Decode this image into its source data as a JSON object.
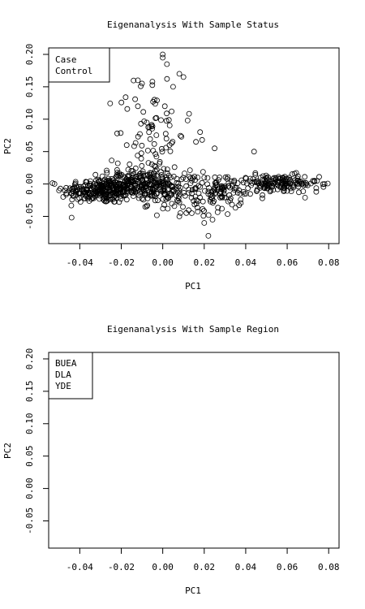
{
  "chart_data": [
    {
      "type": "scatter",
      "title": "Eigenanalysis With Sample Status",
      "xlabel": "PC1",
      "ylabel": "PC2",
      "xlim": [
        -0.055,
        0.085
      ],
      "ylim": [
        -0.092,
        0.21
      ],
      "xticks": [
        "-0.04",
        "-0.02",
        "0.00",
        "0.02",
        "0.04",
        "0.06",
        "0.08"
      ],
      "xtick_values": [
        -0.04,
        -0.02,
        0.0,
        0.02,
        0.04,
        0.06,
        0.08
      ],
      "yticks": [
        "-0.05",
        "0.00",
        "0.05",
        "0.10",
        "0.15",
        "0.20"
      ],
      "ytick_values": [
        -0.05,
        0.0,
        0.05,
        0.1,
        0.15,
        0.2
      ],
      "legend": [
        "Case",
        "Control"
      ],
      "legend_position": "top-left",
      "marker": "open-circle",
      "series": [
        {
          "clusters": [
            {
              "cx": -0.03,
              "cy": -0.01,
              "sx": 0.009,
              "sy": 0.01,
              "n": 230
            },
            {
              "cx": -0.015,
              "cy": 0.0,
              "sx": 0.008,
              "sy": 0.012,
              "n": 180
            },
            {
              "cx": 0.0,
              "cy": -0.005,
              "sx": 0.009,
              "sy": 0.012,
              "n": 110
            },
            {
              "cx": 0.018,
              "cy": -0.02,
              "sx": 0.01,
              "sy": 0.015,
              "n": 80
            },
            {
              "cx": 0.03,
              "cy": -0.005,
              "sx": 0.007,
              "sy": 0.01,
              "n": 60
            },
            {
              "cx": 0.055,
              "cy": 0.0,
              "sx": 0.01,
              "sy": 0.007,
              "n": 160
            },
            {
              "cx": -0.005,
              "cy": 0.08,
              "sx": 0.008,
              "sy": 0.045,
              "n": 75
            }
          ],
          "points": [
            [
              0.0,
              0.2
            ],
            [
              0.0,
              0.195
            ],
            [
              0.002,
              0.185
            ],
            [
              0.008,
              0.17
            ],
            [
              0.01,
              0.165
            ],
            [
              -0.012,
              0.16
            ],
            [
              -0.01,
              0.155
            ],
            [
              -0.005,
              0.158
            ],
            [
              0.005,
              0.15
            ],
            [
              -0.004,
              0.13
            ],
            [
              0.001,
              0.12
            ],
            [
              0.012,
              0.098
            ],
            [
              -0.012,
              0.12
            ],
            [
              -0.022,
              0.078
            ],
            [
              0.025,
              0.055
            ],
            [
              0.044,
              0.05
            ],
            [
              0.078,
              0.0
            ],
            [
              0.074,
              -0.012
            ],
            [
              -0.05,
              -0.01
            ],
            [
              -0.048,
              -0.02
            ],
            [
              0.022,
              -0.08
            ],
            [
              0.024,
              -0.055
            ],
            [
              0.02,
              -0.06
            ],
            [
              0.018,
              0.08
            ],
            [
              0.019,
              0.068
            ],
            [
              0.016,
              0.065
            ],
            [
              0.014,
              -0.045
            ],
            [
              0.008,
              -0.05
            ]
          ]
        }
      ]
    },
    {
      "type": "scatter",
      "title": "Eigenanalysis With Sample Region",
      "xlabel": "PC1",
      "ylabel": "PC2",
      "xlim": [
        -0.055,
        0.085
      ],
      "ylim": [
        -0.092,
        0.21
      ],
      "xticks": [
        "-0.04",
        "-0.02",
        "0.00",
        "0.02",
        "0.04",
        "0.06",
        "0.08"
      ],
      "xtick_values": [
        -0.04,
        -0.02,
        0.0,
        0.02,
        0.04,
        0.06,
        0.08
      ],
      "yticks": [
        "-0.05",
        "0.00",
        "0.05",
        "0.10",
        "0.15",
        "0.20"
      ],
      "ytick_values": [
        -0.05,
        0.0,
        0.05,
        0.1,
        0.15,
        0.2
      ],
      "legend": [
        "BUEA",
        "DLA",
        "YDE"
      ],
      "legend_position": "top-left",
      "series": []
    }
  ]
}
